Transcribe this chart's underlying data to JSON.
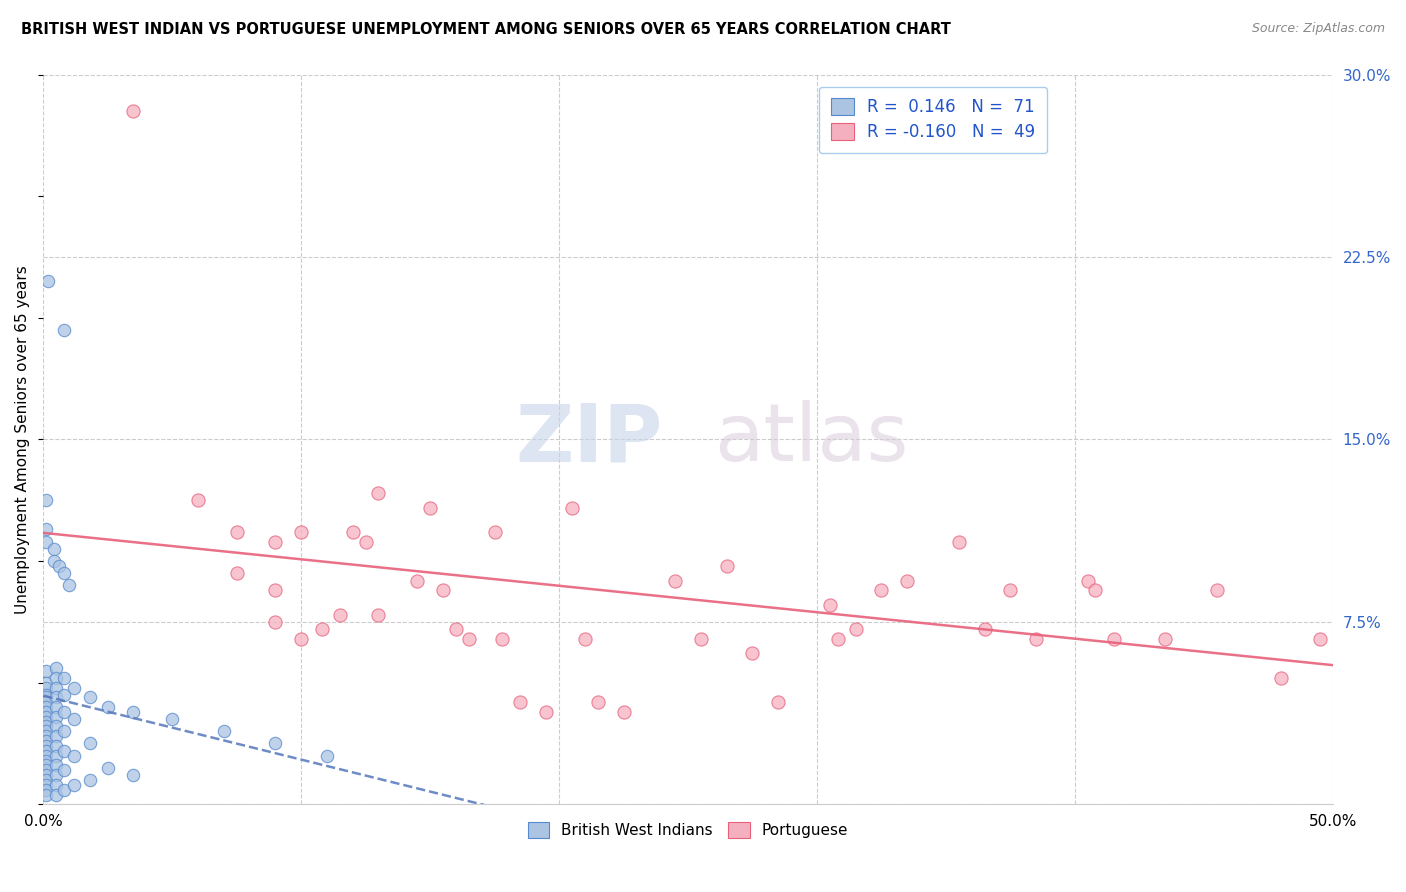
{
  "title": "BRITISH WEST INDIAN VS PORTUGUESE UNEMPLOYMENT AMONG SENIORS OVER 65 YEARS CORRELATION CHART",
  "source": "Source: ZipAtlas.com",
  "ylabel": "Unemployment Among Seniors over 65 years",
  "xlim": [
    0.0,
    0.5
  ],
  "ylim": [
    0.0,
    0.3
  ],
  "xticks": [
    0.0,
    0.1,
    0.2,
    0.3,
    0.4,
    0.5
  ],
  "xticklabels": [
    "0.0%",
    "",
    "",
    "",
    "",
    "50.0%"
  ],
  "yticks_right": [
    0.075,
    0.15,
    0.225,
    0.3
  ],
  "yticklabels_right": [
    "7.5%",
    "15.0%",
    "22.5%",
    "30.0%"
  ],
  "watermark_zip": "ZIP",
  "watermark_atlas": "atlas",
  "bwi_color": "#aac4e2",
  "bwi_edge_color": "#5588cc",
  "portuguese_color": "#f5b0c0",
  "portuguese_edge_color": "#e8607a",
  "bwi_line_color": "#5577bb",
  "portuguese_line_color": "#e8607a",
  "bwi_r": 0.146,
  "bwi_n": 71,
  "portuguese_r": -0.16,
  "portuguese_n": 49,
  "bwi_points": [
    [
      0.001,
      0.055
    ],
    [
      0.001,
      0.05
    ],
    [
      0.001,
      0.048
    ],
    [
      0.001,
      0.045
    ],
    [
      0.001,
      0.044
    ],
    [
      0.001,
      0.042
    ],
    [
      0.001,
      0.04
    ],
    [
      0.001,
      0.038
    ],
    [
      0.001,
      0.036
    ],
    [
      0.001,
      0.034
    ],
    [
      0.001,
      0.032
    ],
    [
      0.001,
      0.03
    ],
    [
      0.001,
      0.028
    ],
    [
      0.001,
      0.026
    ],
    [
      0.001,
      0.024
    ],
    [
      0.001,
      0.022
    ],
    [
      0.001,
      0.02
    ],
    [
      0.001,
      0.018
    ],
    [
      0.001,
      0.016
    ],
    [
      0.001,
      0.014
    ],
    [
      0.001,
      0.012
    ],
    [
      0.001,
      0.01
    ],
    [
      0.001,
      0.008
    ],
    [
      0.001,
      0.006
    ],
    [
      0.001,
      0.004
    ],
    [
      0.005,
      0.056
    ],
    [
      0.005,
      0.052
    ],
    [
      0.005,
      0.048
    ],
    [
      0.005,
      0.044
    ],
    [
      0.005,
      0.04
    ],
    [
      0.005,
      0.036
    ],
    [
      0.005,
      0.032
    ],
    [
      0.005,
      0.028
    ],
    [
      0.005,
      0.024
    ],
    [
      0.005,
      0.02
    ],
    [
      0.005,
      0.016
    ],
    [
      0.005,
      0.012
    ],
    [
      0.005,
      0.008
    ],
    [
      0.005,
      0.004
    ],
    [
      0.008,
      0.052
    ],
    [
      0.008,
      0.045
    ],
    [
      0.008,
      0.038
    ],
    [
      0.008,
      0.03
    ],
    [
      0.008,
      0.022
    ],
    [
      0.008,
      0.014
    ],
    [
      0.008,
      0.006
    ],
    [
      0.012,
      0.048
    ],
    [
      0.012,
      0.035
    ],
    [
      0.012,
      0.02
    ],
    [
      0.012,
      0.008
    ],
    [
      0.018,
      0.044
    ],
    [
      0.018,
      0.025
    ],
    [
      0.018,
      0.01
    ],
    [
      0.025,
      0.04
    ],
    [
      0.025,
      0.015
    ],
    [
      0.035,
      0.038
    ],
    [
      0.035,
      0.012
    ],
    [
      0.05,
      0.035
    ],
    [
      0.07,
      0.03
    ],
    [
      0.09,
      0.025
    ],
    [
      0.11,
      0.02
    ],
    [
      0.002,
      0.215
    ],
    [
      0.008,
      0.195
    ],
    [
      0.001,
      0.125
    ],
    [
      0.001,
      0.113
    ],
    [
      0.001,
      0.108
    ],
    [
      0.004,
      0.105
    ],
    [
      0.004,
      0.1
    ],
    [
      0.006,
      0.098
    ],
    [
      0.008,
      0.095
    ],
    [
      0.01,
      0.09
    ]
  ],
  "portuguese_points": [
    [
      0.035,
      0.285
    ],
    [
      0.06,
      0.125
    ],
    [
      0.075,
      0.112
    ],
    [
      0.075,
      0.095
    ],
    [
      0.09,
      0.108
    ],
    [
      0.09,
      0.088
    ],
    [
      0.09,
      0.075
    ],
    [
      0.1,
      0.068
    ],
    [
      0.1,
      0.112
    ],
    [
      0.108,
      0.072
    ],
    [
      0.115,
      0.078
    ],
    [
      0.12,
      0.112
    ],
    [
      0.125,
      0.108
    ],
    [
      0.13,
      0.128
    ],
    [
      0.13,
      0.078
    ],
    [
      0.145,
      0.092
    ],
    [
      0.15,
      0.122
    ],
    [
      0.155,
      0.088
    ],
    [
      0.16,
      0.072
    ],
    [
      0.165,
      0.068
    ],
    [
      0.175,
      0.112
    ],
    [
      0.178,
      0.068
    ],
    [
      0.185,
      0.042
    ],
    [
      0.195,
      0.038
    ],
    [
      0.205,
      0.122
    ],
    [
      0.21,
      0.068
    ],
    [
      0.215,
      0.042
    ],
    [
      0.225,
      0.038
    ],
    [
      0.245,
      0.092
    ],
    [
      0.255,
      0.068
    ],
    [
      0.265,
      0.098
    ],
    [
      0.275,
      0.062
    ],
    [
      0.285,
      0.042
    ],
    [
      0.305,
      0.082
    ],
    [
      0.308,
      0.068
    ],
    [
      0.315,
      0.072
    ],
    [
      0.325,
      0.088
    ],
    [
      0.335,
      0.092
    ],
    [
      0.355,
      0.108
    ],
    [
      0.365,
      0.072
    ],
    [
      0.375,
      0.088
    ],
    [
      0.385,
      0.068
    ],
    [
      0.405,
      0.092
    ],
    [
      0.408,
      0.088
    ],
    [
      0.415,
      0.068
    ],
    [
      0.435,
      0.068
    ],
    [
      0.455,
      0.088
    ],
    [
      0.48,
      0.052
    ],
    [
      0.495,
      0.068
    ]
  ]
}
